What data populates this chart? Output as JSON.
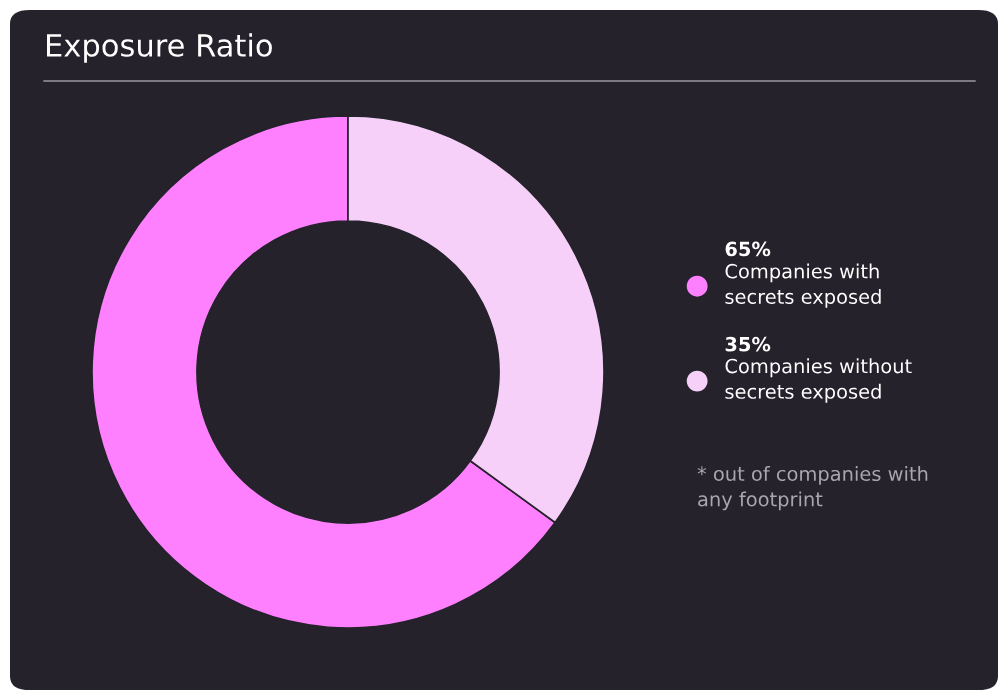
{
  "chart_data": {
    "type": "donut",
    "title": "Exposure Ratio",
    "categories": [
      "Companies with\nsecrets exposed",
      "Companies without\nsecrets exposed"
    ],
    "values": [
      65,
      35
    ],
    "colors": [
      "#ff80ff",
      "#f6d0f8"
    ],
    "value_labels": [
      "65%",
      "35%"
    ],
    "legend": "right",
    "annotations": [
      "* out of companies with\nany footprint"
    ]
  }
}
